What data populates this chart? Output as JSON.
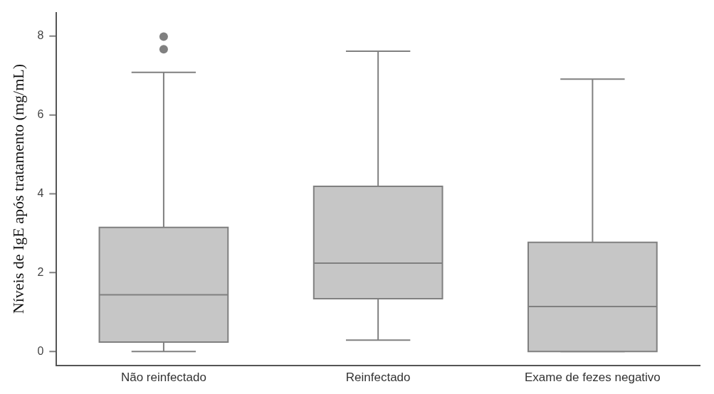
{
  "chart_data": {
    "type": "box",
    "ylabel": "Níveis de IgE após tratamento (mg/mL)",
    "categories": [
      "Não reinfectado",
      "Reinfectado",
      "Exame de fezes negativo"
    ],
    "boxes": [
      {
        "low": 0,
        "q1": 0.24,
        "median": 1.44,
        "q3": 3.15,
        "high": 7.08,
        "outliers": [
          7.67,
          7.99
        ]
      },
      {
        "low": 0.29,
        "q1": 1.34,
        "median": 2.24,
        "q3": 4.19,
        "high": 7.62
      },
      {
        "low": 0,
        "q1": 0,
        "median": 1.14,
        "q3": 2.77,
        "high": 6.91
      }
    ],
    "color": "#c6c6c6",
    "ylim": [
      -0.35,
      8.6
    ],
    "yticks": [
      0,
      2,
      4,
      6,
      8
    ],
    "grid": false,
    "legend": false
  }
}
